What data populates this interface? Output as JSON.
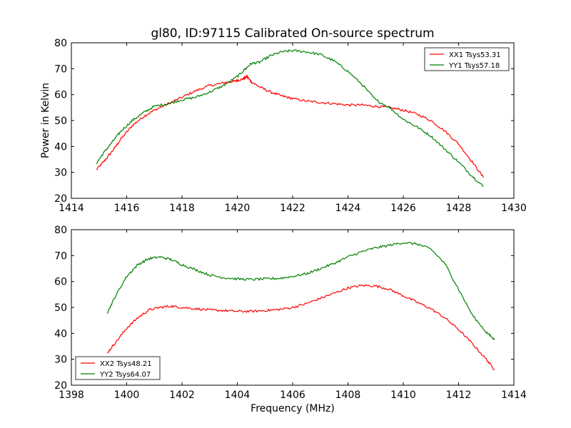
{
  "title": "gl80, ID:97115 Calibrated On-source spectrum",
  "ylabel": "Power in Kelvin",
  "xlabel": "Frequency (MHz)",
  "colors": {
    "red": "#ff0000",
    "green": "#008000"
  },
  "chart_data": [
    {
      "type": "line",
      "title": "gl80, ID:97115 Calibrated On-source spectrum",
      "ylabel": "Power in Kelvin",
      "xlabel": "",
      "xlim": [
        1414,
        1430
      ],
      "ylim": [
        20,
        80
      ],
      "xticks": [
        1414,
        1416,
        1418,
        1420,
        1422,
        1424,
        1426,
        1428,
        1430
      ],
      "yticks": [
        20,
        30,
        40,
        50,
        60,
        70,
        80
      ],
      "grid": false,
      "legend_position": "top-right",
      "series": [
        {
          "name": "XX1 Tsys53.31",
          "color": "#ff0000",
          "x": [
            1414.9,
            1415.2,
            1415.5,
            1415.8,
            1416.2,
            1416.6,
            1417.0,
            1417.5,
            1418.0,
            1418.5,
            1419.0,
            1419.5,
            1419.8,
            1420.0,
            1420.2,
            1420.35,
            1420.5,
            1420.8,
            1421.2,
            1421.6,
            1422.0,
            1422.5,
            1423.0,
            1423.5,
            1424.0,
            1424.5,
            1425.0,
            1425.5,
            1426.0,
            1426.5,
            1427.0,
            1427.5,
            1428.0,
            1428.5,
            1428.9
          ],
          "y": [
            31,
            34.5,
            38.5,
            43,
            48,
            51.5,
            54,
            56.5,
            59,
            61.5,
            63.5,
            64.5,
            65,
            65.5,
            66,
            67,
            65,
            63,
            61,
            59.5,
            58.5,
            57.5,
            57,
            56.5,
            56,
            56,
            55.5,
            55,
            54,
            52.5,
            50,
            46,
            41,
            34,
            28
          ]
        },
        {
          "name": "YY1 Tsys57.18",
          "color": "#008000",
          "x": [
            1414.9,
            1415.2,
            1415.5,
            1415.8,
            1416.2,
            1416.6,
            1417.0,
            1417.5,
            1418.0,
            1418.5,
            1419.0,
            1419.5,
            1420.0,
            1420.3,
            1420.5,
            1420.8,
            1421.2,
            1421.6,
            1422.0,
            1422.5,
            1423.0,
            1423.5,
            1424.0,
            1424.5,
            1425.0,
            1425.5,
            1426.0,
            1426.5,
            1427.0,
            1427.5,
            1428.0,
            1428.5,
            1428.9
          ],
          "y": [
            33.5,
            38,
            42,
            46,
            50,
            53,
            55.5,
            56.5,
            58,
            59,
            61,
            63.5,
            67,
            70,
            72,
            72.5,
            75,
            76.5,
            77,
            76.5,
            75.5,
            73,
            69,
            64,
            58,
            55,
            50.5,
            47.5,
            44,
            39,
            34,
            28.5,
            24.5
          ]
        }
      ]
    },
    {
      "type": "line",
      "title": "",
      "ylabel": "",
      "xlabel": "Frequency (MHz)",
      "xlim": [
        1398,
        1414
      ],
      "ylim": [
        20,
        80
      ],
      "xticks": [
        1398,
        1400,
        1402,
        1404,
        1406,
        1408,
        1410,
        1412,
        1414
      ],
      "yticks": [
        20,
        30,
        40,
        50,
        60,
        70,
        80
      ],
      "grid": false,
      "legend_position": "bottom-left",
      "series": [
        {
          "name": "XX2 Tsys48.21",
          "color": "#ff0000",
          "x": [
            1399.3,
            1399.6,
            1400.0,
            1400.4,
            1400.8,
            1401.2,
            1401.6,
            1402.0,
            1402.5,
            1403.0,
            1403.5,
            1404.0,
            1404.5,
            1405.0,
            1405.5,
            1406.0,
            1406.5,
            1407.0,
            1407.5,
            1408.0,
            1408.5,
            1409.0,
            1409.5,
            1410.0,
            1410.5,
            1411.0,
            1411.5,
            1412.0,
            1412.5,
            1413.0,
            1413.3
          ],
          "y": [
            32.5,
            36.5,
            42,
            46,
            49,
            50,
            50.5,
            50,
            49.5,
            49,
            48.8,
            48.5,
            48.5,
            48.8,
            49.2,
            50,
            51.5,
            53.5,
            55.5,
            57.5,
            58.5,
            58.3,
            57,
            54.5,
            52,
            49.5,
            46,
            41.5,
            36,
            30,
            26
          ]
        },
        {
          "name": "YY2 Tsys64.07",
          "color": "#008000",
          "x": [
            1399.3,
            1399.6,
            1400.0,
            1400.4,
            1400.8,
            1401.2,
            1401.6,
            1402.0,
            1402.5,
            1403.0,
            1403.5,
            1404.0,
            1404.5,
            1405.0,
            1405.5,
            1406.0,
            1406.5,
            1407.0,
            1407.5,
            1408.0,
            1408.5,
            1409.0,
            1409.5,
            1410.0,
            1410.5,
            1411.0,
            1411.5,
            1412.0,
            1412.5,
            1413.0,
            1413.3
          ],
          "y": [
            48,
            54.5,
            62,
            66.5,
            68.8,
            69.5,
            68.5,
            66.5,
            64.5,
            62.5,
            61.5,
            61,
            60.8,
            61,
            61.2,
            62,
            63,
            65,
            67,
            69.5,
            71.5,
            73,
            74,
            75,
            74.5,
            72.5,
            67,
            57,
            47,
            40.5,
            37.5
          ]
        }
      ]
    }
  ]
}
